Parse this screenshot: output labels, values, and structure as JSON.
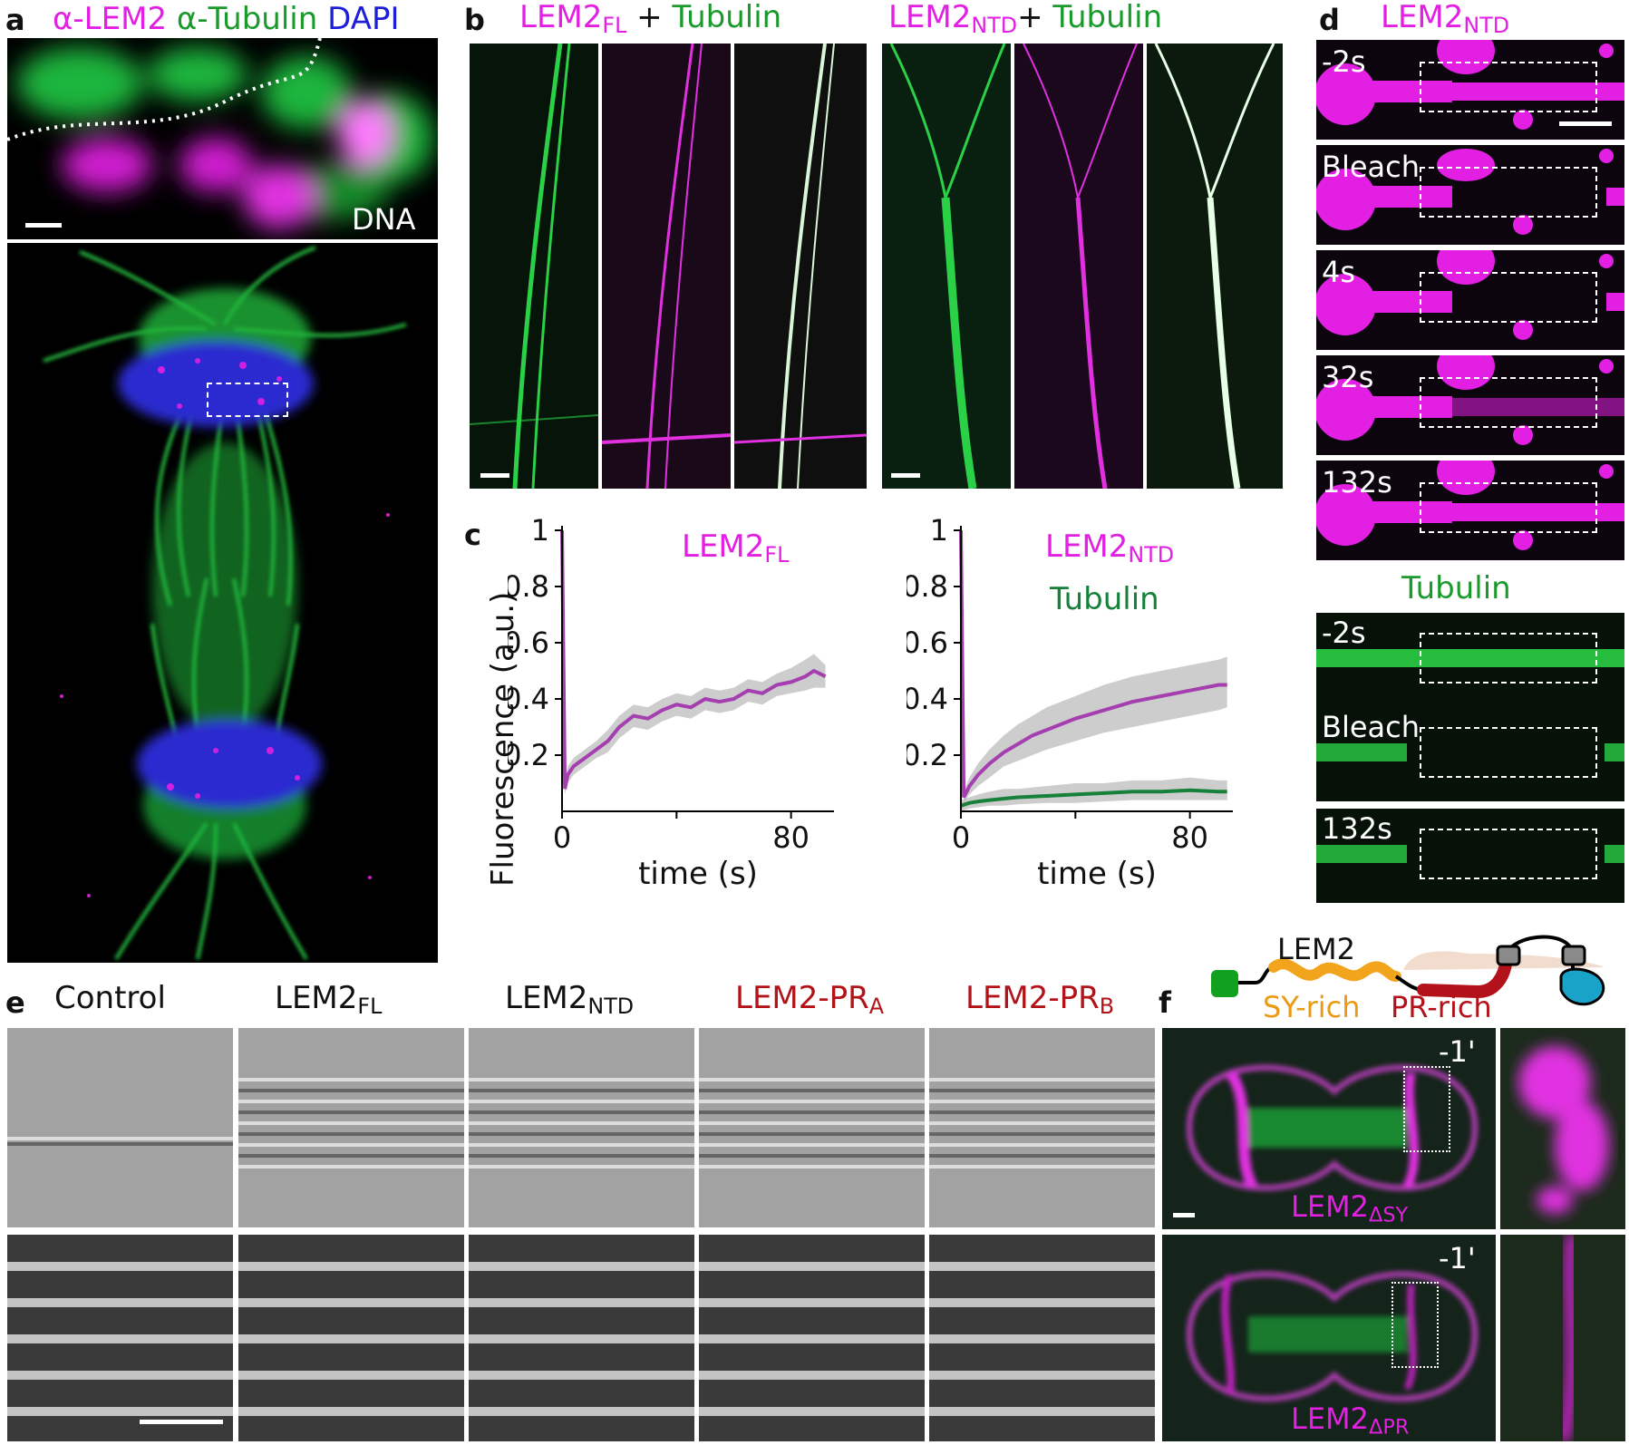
{
  "panel_letters": {
    "a": "a",
    "b": "b",
    "c": "c",
    "d": "d",
    "e": "e",
    "f": "f"
  },
  "panel_a": {
    "title_lem2": "α-LEM2",
    "title_tubulin": "α-Tubulin",
    "title_dapi": "DAPI",
    "inset_label": "DNA",
    "colors": {
      "magenta": "#e21fe3",
      "green": "#1a9a2c",
      "blue": "#1d1fd8"
    }
  },
  "panel_b": {
    "left_title": {
      "main": "LEM2",
      "sub": "FL",
      "plus": "+",
      "partner": "Tubulin"
    },
    "right_title": {
      "main": "LEM2",
      "sub": "NTD",
      "plus": "+",
      "partner": "Tubulin"
    }
  },
  "panel_c": {
    "ylabel": "Fluorescence (a.u.)",
    "xlabel": "time (s)",
    "left_legend": {
      "main": "LEM2",
      "sub": "FL"
    },
    "right_legend": {
      "main": "LEM2",
      "sub": "NTD"
    },
    "right_legend_tubulin": "Tubulin"
  },
  "chart_data": [
    {
      "type": "line",
      "xlabel": "time (s)",
      "ylabel": "Fluorescence (a.u.)",
      "xlim": [
        0,
        95
      ],
      "ylim": [
        0,
        1
      ],
      "yticks": [
        "0.2",
        "0.4",
        "0.6",
        "0.8",
        "1"
      ],
      "xticks": [
        "0",
        "80"
      ],
      "series": [
        {
          "name": "LEM2FL",
          "color": "#a53fb0",
          "x": [
            0,
            1,
            2,
            4,
            8,
            12,
            16,
            20,
            25,
            30,
            35,
            40,
            45,
            50,
            55,
            60,
            65,
            70,
            75,
            80,
            85,
            88,
            92
          ],
          "y": [
            1.0,
            0.08,
            0.13,
            0.16,
            0.19,
            0.22,
            0.25,
            0.3,
            0.34,
            0.33,
            0.36,
            0.38,
            0.37,
            0.4,
            0.39,
            0.4,
            0.43,
            0.42,
            0.45,
            0.46,
            0.48,
            0.5,
            0.48
          ],
          "band_low": [
            1.0,
            0.06,
            0.1,
            0.13,
            0.16,
            0.19,
            0.21,
            0.26,
            0.3,
            0.29,
            0.32,
            0.34,
            0.33,
            0.36,
            0.35,
            0.36,
            0.39,
            0.38,
            0.41,
            0.42,
            0.43,
            0.44,
            0.44
          ],
          "band_high": [
            1.0,
            0.1,
            0.16,
            0.19,
            0.22,
            0.25,
            0.29,
            0.34,
            0.38,
            0.37,
            0.4,
            0.42,
            0.41,
            0.44,
            0.43,
            0.44,
            0.47,
            0.46,
            0.49,
            0.51,
            0.54,
            0.56,
            0.52
          ]
        }
      ]
    },
    {
      "type": "line",
      "xlabel": "time (s)",
      "xlim": [
        0,
        95
      ],
      "ylim": [
        0,
        1
      ],
      "yticks": [
        "0.2",
        "0.4",
        "0.6",
        "0.8",
        "1"
      ],
      "xticks": [
        "0",
        "80"
      ],
      "series": [
        {
          "name": "LEM2NTD",
          "color": "#a53fb0",
          "x": [
            0,
            1,
            3,
            6,
            10,
            15,
            20,
            25,
            30,
            40,
            50,
            60,
            70,
            80,
            90,
            93
          ],
          "y": [
            1.0,
            0.05,
            0.09,
            0.13,
            0.17,
            0.21,
            0.24,
            0.27,
            0.29,
            0.33,
            0.36,
            0.39,
            0.41,
            0.43,
            0.45,
            0.45
          ],
          "band_low": [
            1.0,
            0.03,
            0.06,
            0.09,
            0.12,
            0.16,
            0.18,
            0.2,
            0.22,
            0.25,
            0.28,
            0.3,
            0.32,
            0.34,
            0.36,
            0.37
          ],
          "band_high": [
            1.0,
            0.07,
            0.12,
            0.17,
            0.22,
            0.27,
            0.31,
            0.34,
            0.37,
            0.41,
            0.45,
            0.48,
            0.5,
            0.52,
            0.54,
            0.55
          ]
        },
        {
          "name": "Tubulin",
          "color": "#17803a",
          "x": [
            0,
            3,
            6,
            10,
            15,
            20,
            30,
            40,
            50,
            60,
            70,
            80,
            90,
            93
          ],
          "y": [
            0.02,
            0.03,
            0.035,
            0.04,
            0.045,
            0.05,
            0.055,
            0.06,
            0.065,
            0.07,
            0.07,
            0.075,
            0.07,
            0.07
          ],
          "band_low": [
            0.0,
            0.01,
            0.015,
            0.02,
            0.02,
            0.025,
            0.03,
            0.03,
            0.035,
            0.04,
            0.04,
            0.04,
            0.04,
            0.04
          ],
          "band_high": [
            0.04,
            0.05,
            0.06,
            0.07,
            0.08,
            0.08,
            0.09,
            0.1,
            0.1,
            0.11,
            0.11,
            0.12,
            0.11,
            0.11
          ]
        }
      ]
    }
  ],
  "panel_d": {
    "title": {
      "main": "LEM2",
      "sub": "NTD"
    },
    "frames_lem2": [
      "-2s",
      "Bleach",
      "4s",
      "32s",
      "132s"
    ],
    "tubulin_title": "Tubulin",
    "frames_tubulin": [
      "-2s",
      "Bleach",
      "132s"
    ]
  },
  "panel_e": {
    "columns": [
      {
        "main": "Control",
        "sub": ""
      },
      {
        "main": "LEM2",
        "sub": "FL"
      },
      {
        "main": "LEM2",
        "sub": "NTD"
      },
      {
        "main": "LEM2-PR",
        "sub": "A"
      },
      {
        "main": "LEM2-PR",
        "sub": "B"
      }
    ]
  },
  "panel_f": {
    "schematic_title": "LEM2",
    "sy_label": "SY-rich",
    "pr_label": "PR-rich",
    "time_top": "-1'",
    "time_bottom": "-1'",
    "label_top": {
      "main": "LEM2",
      "sub": "ΔSY"
    },
    "label_bottom": {
      "main": "LEM2",
      "sub": "ΔPR"
    }
  }
}
